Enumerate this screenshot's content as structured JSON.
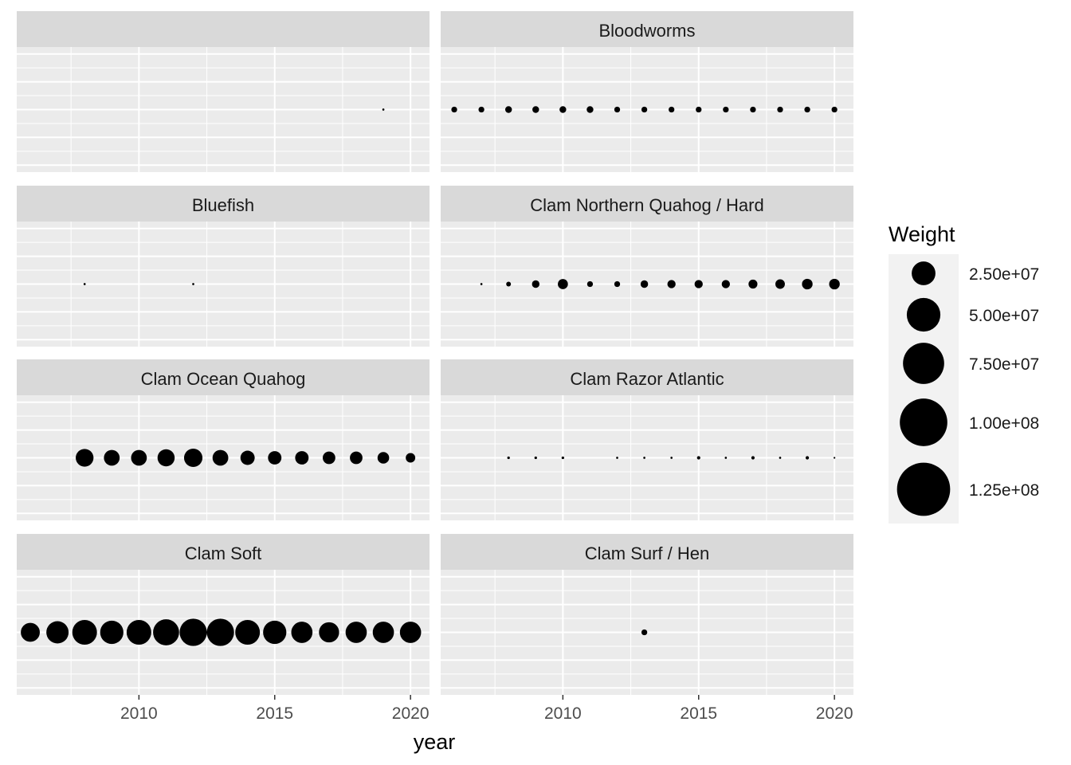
{
  "chart_data": {
    "type": "scatter",
    "subtype": "faceted-bubble",
    "x_axis": {
      "label": "year",
      "range": [
        2005.5,
        2020.7
      ],
      "ticks": [
        2010,
        2015,
        2020
      ],
      "tick_labels": [
        "2010",
        "2015",
        "2020"
      ],
      "minor_ticks": [
        2007.5,
        2012.5,
        2017.5
      ]
    },
    "y_axis": {
      "range": [
        0,
        2
      ]
    },
    "grid": true,
    "facet_columns": 2,
    "size_scale": {
      "max_value": 130000000
    },
    "legend": {
      "title": "Weight",
      "position": "right",
      "labels": [
        "2.50e+07",
        "5.00e+07",
        "7.50e+07",
        "1.00e+08",
        "1.25e+08"
      ],
      "values": [
        25000000,
        50000000,
        75000000,
        100000000,
        125000000
      ]
    },
    "facets": [
      {
        "name": "",
        "points": [
          {
            "x": 2019,
            "y": 1,
            "weight": 200000
          }
        ]
      },
      {
        "name": "Bloodworms",
        "points": [
          {
            "x": 2006,
            "y": 1,
            "weight": 1500000
          },
          {
            "x": 2007,
            "y": 1,
            "weight": 1500000
          },
          {
            "x": 2008,
            "y": 1,
            "weight": 2000000
          },
          {
            "x": 2009,
            "y": 1,
            "weight": 2000000
          },
          {
            "x": 2010,
            "y": 1,
            "weight": 2000000
          },
          {
            "x": 2011,
            "y": 1,
            "weight": 2000000
          },
          {
            "x": 2012,
            "y": 1,
            "weight": 1500000
          },
          {
            "x": 2013,
            "y": 1,
            "weight": 1500000
          },
          {
            "x": 2014,
            "y": 1,
            "weight": 1500000
          },
          {
            "x": 2015,
            "y": 1,
            "weight": 1500000
          },
          {
            "x": 2016,
            "y": 1,
            "weight": 1500000
          },
          {
            "x": 2017,
            "y": 1,
            "weight": 1500000
          },
          {
            "x": 2018,
            "y": 1,
            "weight": 1500000
          },
          {
            "x": 2019,
            "y": 1,
            "weight": 1500000
          },
          {
            "x": 2020,
            "y": 1,
            "weight": 1500000
          }
        ]
      },
      {
        "name": "Bluefish",
        "points": [
          {
            "x": 2008,
            "y": 1,
            "weight": 200000
          },
          {
            "x": 2012,
            "y": 1,
            "weight": 200000
          }
        ]
      },
      {
        "name": "Clam Northern Quahog / Hard",
        "points": [
          {
            "x": 2007,
            "y": 1,
            "weight": 200000
          },
          {
            "x": 2008,
            "y": 1,
            "weight": 1000000
          },
          {
            "x": 2009,
            "y": 1,
            "weight": 2500000
          },
          {
            "x": 2010,
            "y": 1,
            "weight": 4500000
          },
          {
            "x": 2011,
            "y": 1,
            "weight": 1500000
          },
          {
            "x": 2012,
            "y": 1,
            "weight": 1500000
          },
          {
            "x": 2013,
            "y": 1,
            "weight": 2500000
          },
          {
            "x": 2014,
            "y": 1,
            "weight": 3000000
          },
          {
            "x": 2015,
            "y": 1,
            "weight": 3000000
          },
          {
            "x": 2016,
            "y": 1,
            "weight": 3000000
          },
          {
            "x": 2017,
            "y": 1,
            "weight": 3500000
          },
          {
            "x": 2018,
            "y": 1,
            "weight": 4000000
          },
          {
            "x": 2019,
            "y": 1,
            "weight": 5000000
          },
          {
            "x": 2020,
            "y": 1,
            "weight": 5000000
          }
        ]
      },
      {
        "name": "Clam Ocean Quahog",
        "points": [
          {
            "x": 2008,
            "y": 1,
            "weight": 14000000
          },
          {
            "x": 2009,
            "y": 1,
            "weight": 11000000
          },
          {
            "x": 2010,
            "y": 1,
            "weight": 11000000
          },
          {
            "x": 2011,
            "y": 1,
            "weight": 13000000
          },
          {
            "x": 2012,
            "y": 1,
            "weight": 15000000
          },
          {
            "x": 2013,
            "y": 1,
            "weight": 11000000
          },
          {
            "x": 2014,
            "y": 1,
            "weight": 9000000
          },
          {
            "x": 2015,
            "y": 1,
            "weight": 8000000
          },
          {
            "x": 2016,
            "y": 1,
            "weight": 8000000
          },
          {
            "x": 2017,
            "y": 1,
            "weight": 7000000
          },
          {
            "x": 2018,
            "y": 1,
            "weight": 7000000
          },
          {
            "x": 2019,
            "y": 1,
            "weight": 6000000
          },
          {
            "x": 2020,
            "y": 1,
            "weight": 4000000
          }
        ]
      },
      {
        "name": "Clam Razor Atlantic",
        "points": [
          {
            "x": 2008,
            "y": 1,
            "weight": 300000
          },
          {
            "x": 2009,
            "y": 1,
            "weight": 300000
          },
          {
            "x": 2010,
            "y": 1,
            "weight": 300000
          },
          {
            "x": 2012,
            "y": 1,
            "weight": 200000
          },
          {
            "x": 2013,
            "y": 1,
            "weight": 200000
          },
          {
            "x": 2014,
            "y": 1,
            "weight": 200000
          },
          {
            "x": 2015,
            "y": 1,
            "weight": 500000
          },
          {
            "x": 2016,
            "y": 1,
            "weight": 200000
          },
          {
            "x": 2017,
            "y": 1,
            "weight": 500000
          },
          {
            "x": 2018,
            "y": 1,
            "weight": 200000
          },
          {
            "x": 2019,
            "y": 1,
            "weight": 500000
          },
          {
            "x": 2020,
            "y": 1,
            "weight": 150000
          }
        ]
      },
      {
        "name": "Clam Soft",
        "points": [
          {
            "x": 2006,
            "y": 1,
            "weight": 16000000
          },
          {
            "x": 2007,
            "y": 1,
            "weight": 22000000
          },
          {
            "x": 2008,
            "y": 1,
            "weight": 27000000
          },
          {
            "x": 2009,
            "y": 1,
            "weight": 24000000
          },
          {
            "x": 2010,
            "y": 1,
            "weight": 27000000
          },
          {
            "x": 2011,
            "y": 1,
            "weight": 30000000
          },
          {
            "x": 2012,
            "y": 1,
            "weight": 33000000
          },
          {
            "x": 2013,
            "y": 1,
            "weight": 33000000
          },
          {
            "x": 2014,
            "y": 1,
            "weight": 27000000
          },
          {
            "x": 2015,
            "y": 1,
            "weight": 24000000
          },
          {
            "x": 2016,
            "y": 1,
            "weight": 20000000
          },
          {
            "x": 2017,
            "y": 1,
            "weight": 18000000
          },
          {
            "x": 2018,
            "y": 1,
            "weight": 20000000
          },
          {
            "x": 2019,
            "y": 1,
            "weight": 20000000
          },
          {
            "x": 2020,
            "y": 1,
            "weight": 20000000
          }
        ]
      },
      {
        "name": "Clam Surf / Hen",
        "points": [
          {
            "x": 2013,
            "y": 1,
            "weight": 1500000
          }
        ]
      }
    ]
  }
}
